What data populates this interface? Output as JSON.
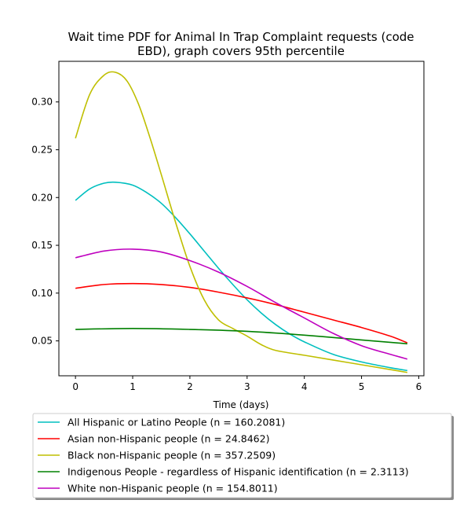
{
  "chart_data": {
    "type": "line",
    "title_lines": [
      "Wait time PDF for Animal In Trap Complaint  requests (code",
      "EBD), graph covers 95th percentile"
    ],
    "xlabel": "Time (days)",
    "ylabel": "",
    "xlim": [
      -0.29,
      6.09
    ],
    "ylim": [
      0.0135,
      0.3425
    ],
    "x_ticks": [
      0,
      1,
      2,
      3,
      4,
      5,
      6
    ],
    "y_ticks": [
      0.05,
      0.1,
      0.15,
      0.2,
      0.25,
      0.3
    ],
    "y_tick_labels": [
      "0.05",
      "0.10",
      "0.15",
      "0.20",
      "0.25",
      "0.30"
    ],
    "grid": false,
    "legend_position": "below",
    "series": [
      {
        "name": "All Hispanic or Latino People (n = 160.2081)",
        "color": "#00bfbf",
        "x": [
          0,
          0.25,
          0.5,
          0.7,
          1.0,
          1.25,
          1.5,
          1.75,
          2.0,
          2.25,
          2.5,
          2.75,
          3.0,
          3.25,
          3.5,
          3.75,
          4.0,
          4.5,
          5.0,
          5.5,
          5.8
        ],
        "y": [
          0.197,
          0.209,
          0.215,
          0.216,
          0.213,
          0.205,
          0.194,
          0.179,
          0.162,
          0.144,
          0.126,
          0.109,
          0.093,
          0.079,
          0.067,
          0.057,
          0.049,
          0.036,
          0.028,
          0.022,
          0.019
        ]
      },
      {
        "name": "Asian non-Hispanic people (n = 24.8462)",
        "color": "#ff0000",
        "x": [
          0,
          0.5,
          1.0,
          1.5,
          2.0,
          2.5,
          3.0,
          3.5,
          4.0,
          4.5,
          5.0,
          5.5,
          5.8
        ],
        "y": [
          0.105,
          0.109,
          0.11,
          0.109,
          0.106,
          0.101,
          0.095,
          0.088,
          0.08,
          0.072,
          0.064,
          0.055,
          0.048
        ]
      },
      {
        "name": "Black non-Hispanic people (n = 357.2509)",
        "color": "#bfbf00",
        "x": [
          0,
          0.25,
          0.5,
          0.7,
          0.9,
          1.1,
          1.3,
          1.5,
          1.75,
          2.0,
          2.25,
          2.5,
          2.75,
          3.0,
          3.25,
          3.5,
          4.0,
          4.5,
          5.0,
          5.5,
          5.8
        ],
        "y": [
          0.262,
          0.308,
          0.328,
          0.331,
          0.322,
          0.298,
          0.263,
          0.224,
          0.174,
          0.128,
          0.093,
          0.072,
          0.063,
          0.055,
          0.046,
          0.04,
          0.035,
          0.03,
          0.025,
          0.02,
          0.017
        ]
      },
      {
        "name": "Indigenous People - regardless of Hispanic identification (n = 2.3113)",
        "color": "#008000",
        "x": [
          0,
          1.0,
          2.0,
          3.0,
          4.0,
          5.0,
          5.8
        ],
        "y": [
          0.062,
          0.063,
          0.062,
          0.06,
          0.056,
          0.051,
          0.047
        ]
      },
      {
        "name": "White non-Hispanic people (n = 154.8011)",
        "color": "#bf00bf",
        "x": [
          0,
          0.5,
          1.0,
          1.5,
          2.0,
          2.5,
          3.0,
          3.5,
          4.0,
          4.5,
          5.0,
          5.5,
          5.8
        ],
        "y": [
          0.137,
          0.144,
          0.146,
          0.143,
          0.134,
          0.122,
          0.107,
          0.09,
          0.074,
          0.058,
          0.045,
          0.036,
          0.031
        ]
      }
    ]
  }
}
